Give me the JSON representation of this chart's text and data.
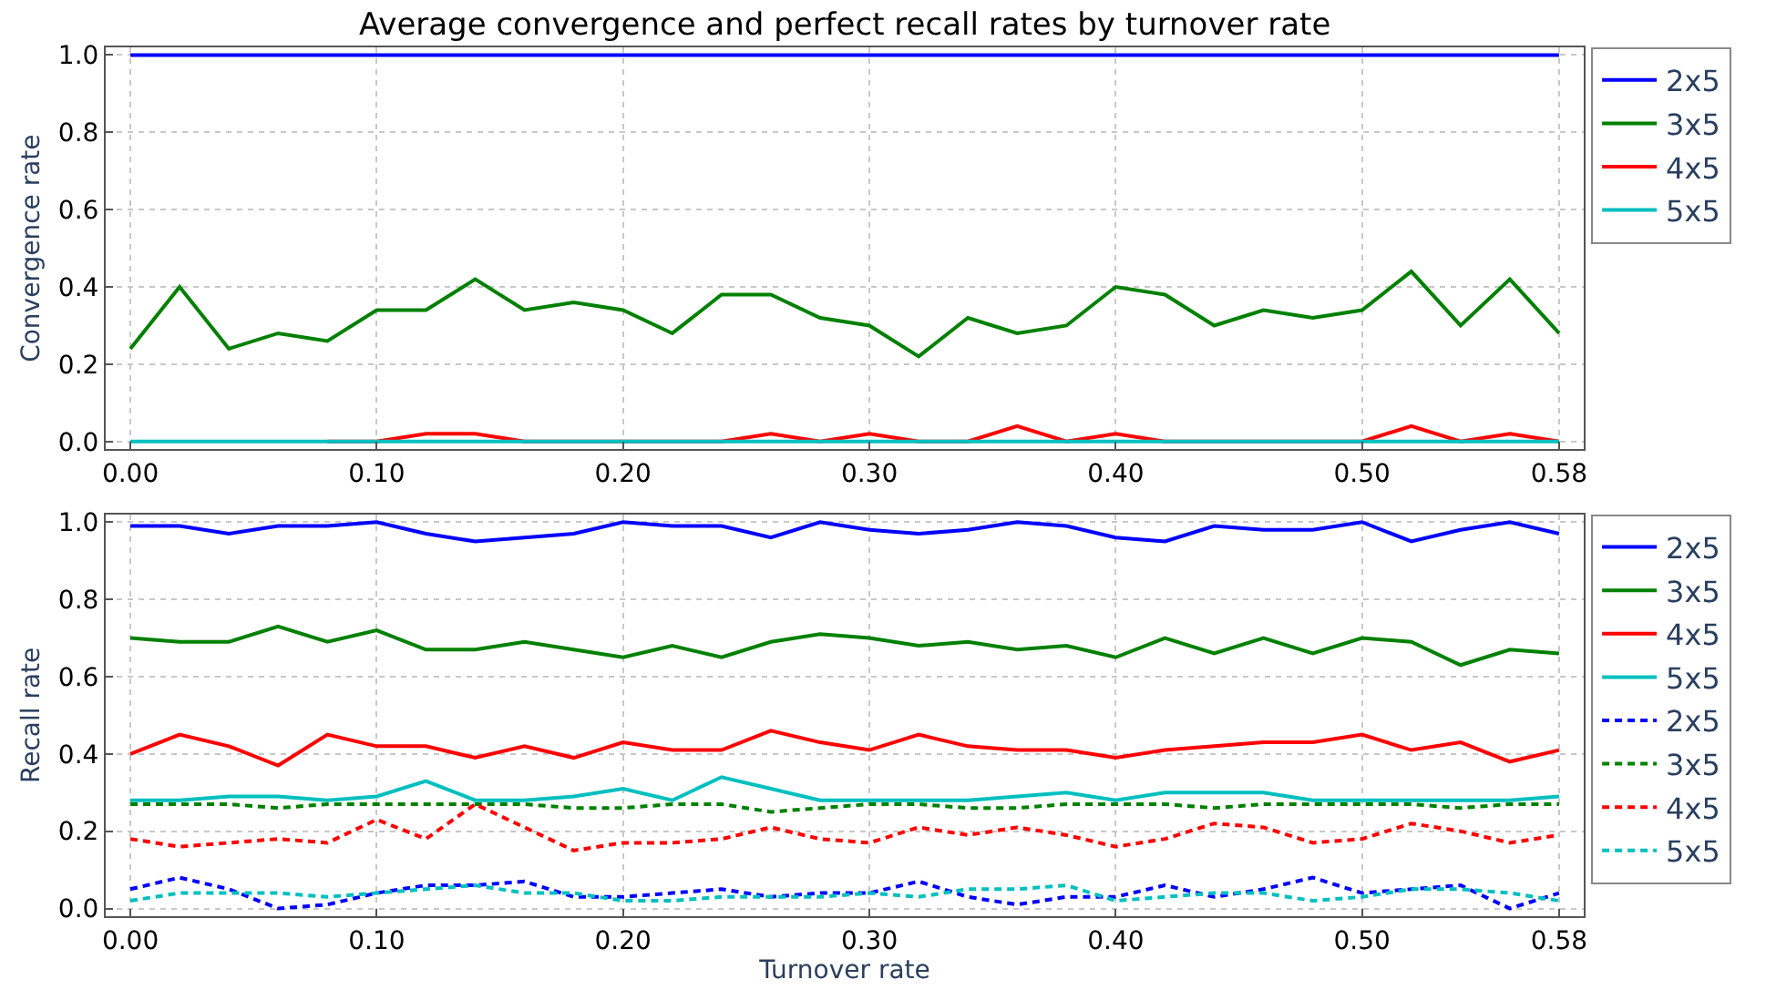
{
  "chart_data": [
    {
      "type": "line",
      "title": "Average convergence and perfect recall rates by turnover rate",
      "ylabel": "Convergence rate",
      "x": [
        0.0,
        0.02,
        0.04,
        0.06,
        0.08,
        0.1,
        0.12,
        0.14,
        0.16,
        0.18,
        0.2,
        0.22,
        0.24,
        0.26,
        0.28,
        0.3,
        0.32,
        0.34,
        0.36,
        0.38,
        0.4,
        0.42,
        0.44,
        0.46,
        0.48,
        0.5,
        0.52,
        0.54,
        0.56,
        0.58
      ],
      "xlim": [
        -0.01,
        0.59
      ],
      "xticks": [
        {
          "value": 0,
          "label": "0.00"
        },
        {
          "value": 0.1,
          "label": "0.10"
        },
        {
          "value": 0.2,
          "label": "0.20"
        },
        {
          "value": 0.3,
          "label": "0.30"
        },
        {
          "value": 0.4,
          "label": "0.40"
        },
        {
          "value": 0.5,
          "label": "0.50"
        },
        {
          "value": 0.58,
          "label": "0.58"
        }
      ],
      "ylim": [
        -0.02,
        1.02
      ],
      "yticks": [
        {
          "value": 0,
          "label": "0.0"
        },
        {
          "value": 0.2,
          "label": "0.2"
        },
        {
          "value": 0.4,
          "label": "0.4"
        },
        {
          "value": 0.6,
          "label": "0.6"
        },
        {
          "value": 0.8,
          "label": "0.8"
        },
        {
          "value": 1,
          "label": "1.0"
        }
      ],
      "grid": true,
      "legend": "right",
      "line_style": "solid",
      "series": [
        {
          "name": "2x5",
          "color": "#0000ff",
          "values": [
            1,
            1,
            1,
            1,
            1,
            1,
            1,
            1,
            1,
            1,
            1,
            1,
            1,
            1,
            1,
            1,
            1,
            1,
            1,
            1,
            1,
            1,
            1,
            1,
            1,
            1,
            1,
            1,
            1,
            1
          ]
        },
        {
          "name": "3x5",
          "color": "#008000",
          "values": [
            0.24,
            0.4,
            0.24,
            0.28,
            0.26,
            0.34,
            0.34,
            0.42,
            0.34,
            0.36,
            0.34,
            0.28,
            0.38,
            0.38,
            0.32,
            0.3,
            0.22,
            0.32,
            0.28,
            0.3,
            0.4,
            0.38,
            0.3,
            0.34,
            0.32,
            0.34,
            0.44,
            0.3,
            0.42,
            0.28
          ]
        },
        {
          "name": "4x5",
          "color": "#ff0000",
          "values": [
            null,
            null,
            null,
            null,
            0,
            0,
            0.02,
            0.02,
            0,
            0,
            0,
            0,
            0,
            0.02,
            0,
            0.02,
            0,
            0,
            0.04,
            0,
            0.02,
            0,
            0,
            0,
            0,
            0,
            0.04,
            0,
            0.02,
            0
          ]
        },
        {
          "name": "5x5",
          "color": "#00bfbf",
          "values": [
            0,
            0,
            0,
            0,
            0,
            0,
            0,
            0,
            0,
            0,
            0,
            0,
            0,
            0,
            0,
            0,
            0,
            0,
            0,
            0,
            0,
            0,
            0,
            0,
            0,
            0,
            0,
            0,
            0,
            0
          ]
        }
      ]
    },
    {
      "type": "line",
      "xlabel": "Turnover rate",
      "ylabel": "Recall rate",
      "x": [
        0.0,
        0.02,
        0.04,
        0.06,
        0.08,
        0.1,
        0.12,
        0.14,
        0.16,
        0.18,
        0.2,
        0.22,
        0.24,
        0.26,
        0.28,
        0.3,
        0.32,
        0.34,
        0.36,
        0.38,
        0.4,
        0.42,
        0.44,
        0.46,
        0.48,
        0.5,
        0.52,
        0.54,
        0.56,
        0.58
      ],
      "xlim": [
        -0.01,
        0.59
      ],
      "xticks": [
        {
          "value": 0,
          "label": "0.00"
        },
        {
          "value": 0.1,
          "label": "0.10"
        },
        {
          "value": 0.2,
          "label": "0.20"
        },
        {
          "value": 0.3,
          "label": "0.30"
        },
        {
          "value": 0.4,
          "label": "0.40"
        },
        {
          "value": 0.5,
          "label": "0.50"
        },
        {
          "value": 0.58,
          "label": "0.58"
        }
      ],
      "ylim": [
        -0.02,
        1.02
      ],
      "yticks": [
        {
          "value": 0,
          "label": "0.0"
        },
        {
          "value": 0.2,
          "label": "0.2"
        },
        {
          "value": 0.4,
          "label": "0.4"
        },
        {
          "value": 0.6,
          "label": "0.6"
        },
        {
          "value": 0.8,
          "label": "0.8"
        },
        {
          "value": 1,
          "label": "1.0"
        }
      ],
      "grid": true,
      "legend": "right",
      "series": [
        {
          "name": "2x5",
          "color": "#0000ff",
          "line_style": "solid",
          "values": [
            0.99,
            0.99,
            0.97,
            0.99,
            0.99,
            1.0,
            0.97,
            0.95,
            0.96,
            0.97,
            1.0,
            0.99,
            0.99,
            0.96,
            1.0,
            0.98,
            0.97,
            0.98,
            1.0,
            0.99,
            0.96,
            0.95,
            0.99,
            0.98,
            0.98,
            1.0,
            0.95,
            0.98,
            1.0,
            0.97
          ]
        },
        {
          "name": "3x5",
          "color": "#008000",
          "line_style": "solid",
          "values": [
            0.7,
            0.69,
            0.69,
            0.73,
            0.69,
            0.72,
            0.67,
            0.67,
            0.69,
            0.67,
            0.65,
            0.68,
            0.65,
            0.69,
            0.71,
            0.7,
            0.68,
            0.69,
            0.67,
            0.68,
            0.65,
            0.7,
            0.66,
            0.7,
            0.66,
            0.7,
            0.69,
            0.63,
            0.67,
            0.66
          ]
        },
        {
          "name": "4x5",
          "color": "#ff0000",
          "line_style": "solid",
          "values": [
            0.4,
            0.45,
            0.42,
            0.37,
            0.45,
            0.42,
            0.42,
            0.39,
            0.42,
            0.39,
            0.43,
            0.41,
            0.41,
            0.46,
            0.43,
            0.41,
            0.45,
            0.42,
            0.41,
            0.41,
            0.39,
            0.41,
            0.42,
            0.43,
            0.43,
            0.45,
            0.41,
            0.43,
            0.38,
            0.41
          ]
        },
        {
          "name": "5x5",
          "color": "#00bfbf",
          "line_style": "solid",
          "values": [
            0.28,
            0.28,
            0.29,
            0.29,
            0.28,
            0.29,
            0.33,
            0.28,
            0.28,
            0.29,
            0.31,
            0.28,
            0.34,
            0.31,
            0.28,
            0.28,
            0.28,
            0.28,
            0.29,
            0.3,
            0.28,
            0.3,
            0.3,
            0.3,
            0.28,
            0.28,
            0.28,
            0.28,
            0.28,
            0.29
          ]
        },
        {
          "name": "2x5",
          "color": "#0000ff",
          "line_style": "dashed",
          "values": [
            0.05,
            0.08,
            0.05,
            0.0,
            0.01,
            0.04,
            0.06,
            0.06,
            0.07,
            0.03,
            0.03,
            0.04,
            0.05,
            0.03,
            0.04,
            0.04,
            0.07,
            0.03,
            0.01,
            0.03,
            0.03,
            0.06,
            0.03,
            0.05,
            0.08,
            0.04,
            0.05,
            0.06,
            0.0,
            0.04
          ]
        },
        {
          "name": "3x5",
          "color": "#008000",
          "line_style": "dashed",
          "values": [
            0.27,
            0.27,
            0.27,
            0.26,
            0.27,
            0.27,
            0.27,
            0.27,
            0.27,
            0.26,
            0.26,
            0.27,
            0.27,
            0.25,
            0.26,
            0.27,
            0.27,
            0.26,
            0.26,
            0.27,
            0.27,
            0.27,
            0.26,
            0.27,
            0.27,
            0.27,
            0.27,
            0.26,
            0.27,
            0.27
          ]
        },
        {
          "name": "4x5",
          "color": "#ff0000",
          "line_style": "dashed",
          "values": [
            0.18,
            0.16,
            0.17,
            0.18,
            0.17,
            0.23,
            0.18,
            0.27,
            0.21,
            0.15,
            0.17,
            0.17,
            0.18,
            0.21,
            0.18,
            0.17,
            0.21,
            0.19,
            0.21,
            0.19,
            0.16,
            0.18,
            0.22,
            0.21,
            0.17,
            0.18,
            0.22,
            0.2,
            0.17,
            0.19
          ]
        },
        {
          "name": "5x5",
          "color": "#00bfbf",
          "line_style": "dashed",
          "values": [
            0.02,
            0.04,
            0.04,
            0.04,
            0.03,
            0.04,
            0.05,
            0.06,
            0.04,
            0.04,
            0.02,
            0.02,
            0.03,
            0.03,
            0.03,
            0.04,
            0.03,
            0.05,
            0.05,
            0.06,
            0.02,
            0.03,
            0.04,
            0.04,
            0.02,
            0.03,
            0.05,
            0.05,
            0.04,
            0.02
          ]
        }
      ]
    }
  ]
}
